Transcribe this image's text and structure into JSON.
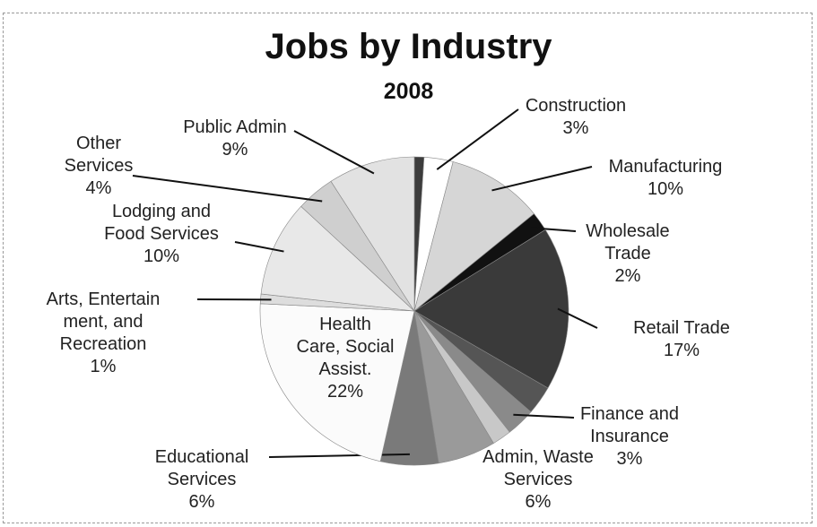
{
  "chart_data": {
    "type": "pie",
    "title": "Jobs by Industry",
    "subtitle": "2008",
    "categories": [
      null,
      "Construction",
      "Manufacturing",
      "Wholesale Trade",
      "Retail Trade",
      null,
      "Finance and Insurance",
      null,
      "Admin, Waste Services",
      "Educational Services",
      "Health Care, Social Assist.",
      "Arts, Entertain ment, and Recreation",
      "Lodging and Food Services",
      "Other Services",
      "Public Admin"
    ],
    "values": [
      1,
      3,
      10,
      2,
      17,
      3,
      3,
      2,
      6,
      6,
      22,
      1,
      10,
      4,
      9
    ],
    "value_labels": [
      null,
      "3%",
      "10%",
      "2%",
      "17%",
      null,
      "3%",
      null,
      "6%",
      "6%",
      "22%",
      "1%",
      "10%",
      "4%",
      "9%"
    ],
    "colors": [
      "#3c3c3c",
      "#ffffff",
      "#d6d6d6",
      "#111111",
      "#3a3a3a",
      "#555555",
      "#8a8a8a",
      "#c8c8c8",
      "#9a9a9a",
      "#7a7a7a",
      "#fbfbfb",
      "#dddddd",
      "#e8e8e8",
      "#cfcfcf",
      "#e2e2e2"
    ]
  }
}
